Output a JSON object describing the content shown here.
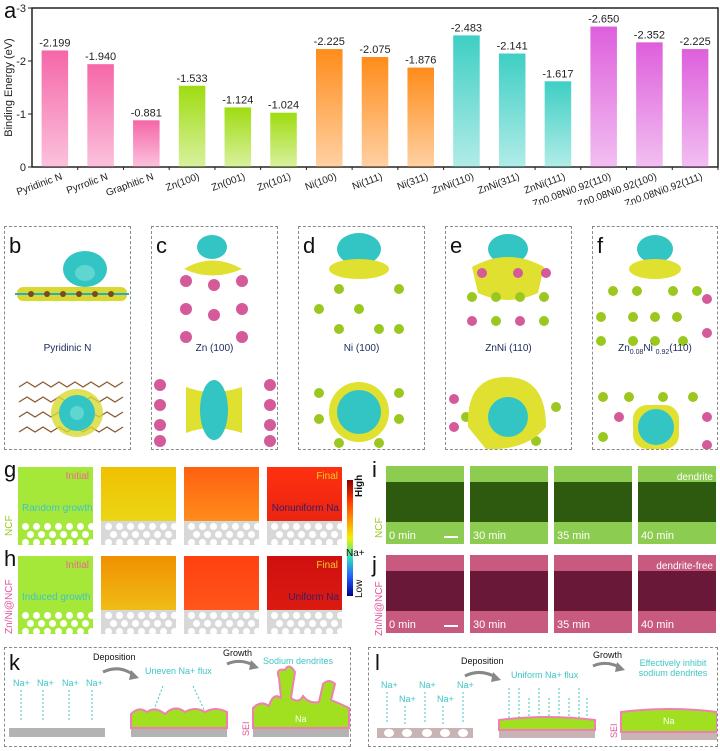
{
  "panel_labels": {
    "a": "a",
    "b": "b",
    "c": "c",
    "d": "d",
    "e": "e",
    "f": "f",
    "g": "g",
    "h": "h",
    "i": "i",
    "j": "j",
    "k": "k",
    "l": "l"
  },
  "chart_data": {
    "type": "bar",
    "title": "",
    "xlabel": "",
    "ylabel": "Binding Energy (eV)",
    "ylim": [
      0,
      -3
    ],
    "yticks": [
      "-3",
      "-2",
      "-1",
      "0"
    ],
    "ytick_values": [
      -3,
      -2,
      -1,
      0
    ],
    "categories": [
      "Pyridinic N",
      "Pyrrolic N",
      "Graphitic N",
      "Zn(100)",
      "Zn(001)",
      "Zn(101)",
      "Ni(100)",
      "Ni(111)",
      "Ni(311)",
      "ZnNi(110)",
      "ZnNi(311)",
      "ZnNi(111)",
      "Zn0.08Ni0.92(110)",
      "Zn0.08Ni0.92(100)",
      "Zn0.08Ni0.92(111)"
    ],
    "values": [
      -2.199,
      -1.94,
      -0.881,
      -1.533,
      -1.124,
      -1.024,
      -2.225,
      -2.075,
      -1.876,
      -2.483,
      -2.141,
      -1.617,
      -2.65,
      -2.352,
      -2.225
    ],
    "value_labels": [
      "-2.199",
      "-1.940",
      "-0.881",
      "-1.533",
      "-1.124",
      "-1.024",
      "-2.225",
      "-2.075",
      "-1.876",
      "-2.483",
      "-2.141",
      "-1.617",
      "-2.650",
      "-2.352",
      "-2.225"
    ],
    "groups": [
      {
        "name": "N-doped carbon",
        "color": "#f567a8",
        "members": [
          0,
          1,
          2
        ]
      },
      {
        "name": "Zn",
        "color": "#9fdc10",
        "members": [
          3,
          4,
          5
        ]
      },
      {
        "name": "Ni",
        "color": "#ff8c1a",
        "members": [
          6,
          7,
          8
        ]
      },
      {
        "name": "ZnNi",
        "color": "#3ecfc4",
        "members": [
          9,
          10,
          11
        ]
      },
      {
        "name": "Zn0.08Ni0.92",
        "color": "#de5fdc",
        "members": [
          12,
          13,
          14
        ]
      }
    ],
    "grid": false,
    "legend": "none"
  },
  "structures": {
    "b": {
      "caption": "Pyridinic N"
    },
    "c": {
      "caption": "Zn (100)"
    },
    "d": {
      "caption": "Ni (100)"
    },
    "e": {
      "caption": "ZnNi (110)"
    },
    "f": {
      "caption_main": "Zn",
      "caption_sub1": "0.08",
      "caption_mid": "Ni ",
      "caption_sub2": "0.92",
      "caption_end": "(110)"
    }
  },
  "simulation": {
    "row_g": {
      "side_label": "NCF",
      "initial": "Initial",
      "final": "Final",
      "start_text": "Random growth",
      "end_text": "Nonuniform Na"
    },
    "row_h": {
      "side_label": "Zn/Ni@NCF",
      "initial": "Initial",
      "final": "Final",
      "start_text": "Induced growth",
      "end_text": "Uniform Na"
    },
    "colorbar": {
      "high": "High",
      "mid": "Na+",
      "low": "Low"
    }
  },
  "microscopy": {
    "row_i": {
      "side_label": "NCF",
      "note": "dendrite",
      "times": [
        "0 min",
        "30 min",
        "35 min",
        "40 min"
      ]
    },
    "row_j": {
      "side_label": "Zn/Ni@NCF",
      "note": "dendrite-free",
      "times": [
        "0 min",
        "30 min",
        "35 min",
        "40 min"
      ]
    }
  },
  "schematic_k": {
    "deposition": "Deposition",
    "growth": "Growth",
    "ions": [
      "Na+",
      "Na+",
      "Na+",
      "Na+"
    ],
    "flux": "Uneven Na+ flux",
    "result": "Sodium dendrites",
    "sei": "SEI",
    "na": "Na"
  },
  "schematic_l": {
    "deposition": "Deposition",
    "growth": "Growth",
    "ions": [
      "Na+",
      "Na+",
      "Na+",
      "Na+",
      "Na+"
    ],
    "flux": "Uniform Na+ flux",
    "result_line1": "Effectively inhibit",
    "result_line2": "sodium dendrites",
    "sei": "SEI",
    "na": "Na"
  }
}
